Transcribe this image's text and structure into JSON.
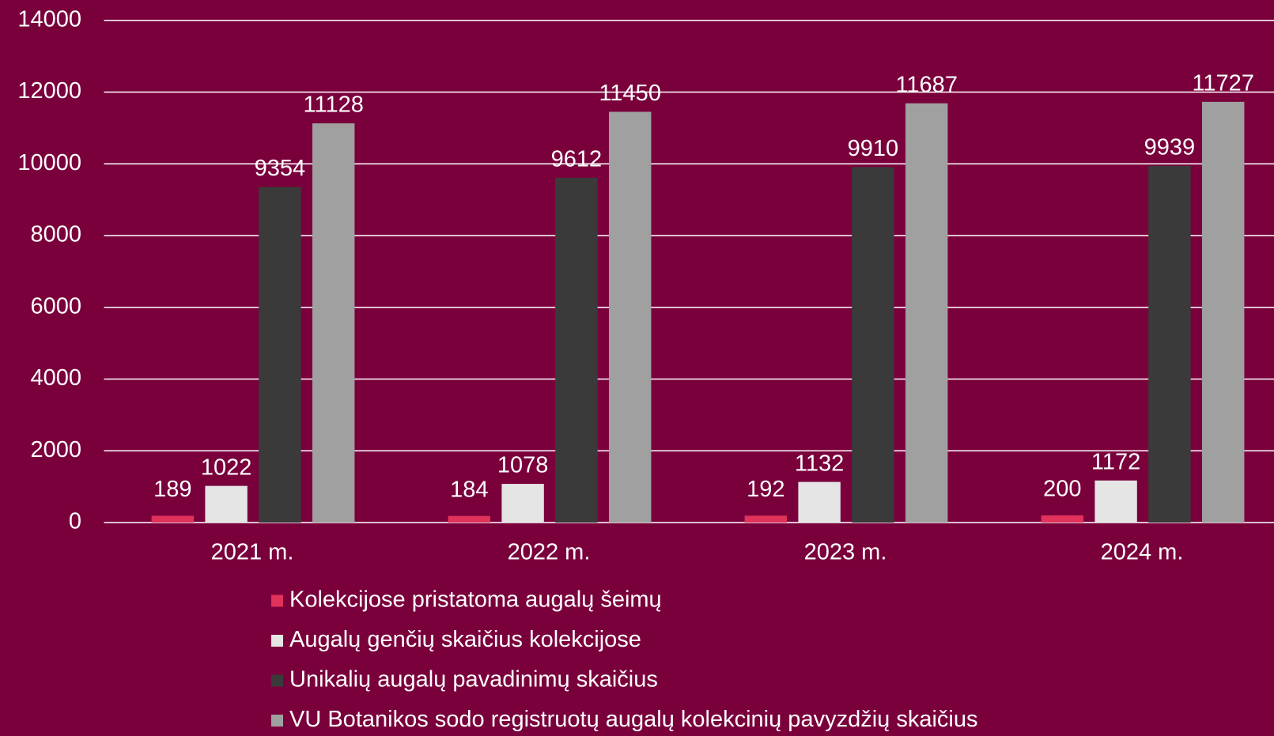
{
  "chart_data": {
    "type": "bar",
    "categories": [
      "2021 m.",
      "2022 m.",
      "2023 m.",
      "2024 m."
    ],
    "series": [
      {
        "name": "Kolekcijose pristatoma augalų šeimų",
        "color": "#e0325a",
        "values": [
          189,
          184,
          192,
          200
        ]
      },
      {
        "name": "Augalų genčių skaičius kolekcijose",
        "color": "#e5e5e5",
        "values": [
          1022,
          1078,
          1132,
          1172
        ]
      },
      {
        "name": "Unikalių augalų pavadinimų skaičius",
        "color": "#3a3a3a",
        "values": [
          9354,
          9612,
          9910,
          9939
        ]
      },
      {
        "name": "VU Botanikos sodo registruotų augalų kolekcinių pavyzdžių skaičius",
        "color": "#a0a0a0",
        "values": [
          11128,
          11450,
          11687,
          11727
        ]
      }
    ],
    "ylim": [
      0,
      14000
    ],
    "yticks": [
      0,
      2000,
      4000,
      6000,
      8000,
      10000,
      12000,
      14000
    ],
    "grid": true,
    "legend": "bottom"
  }
}
